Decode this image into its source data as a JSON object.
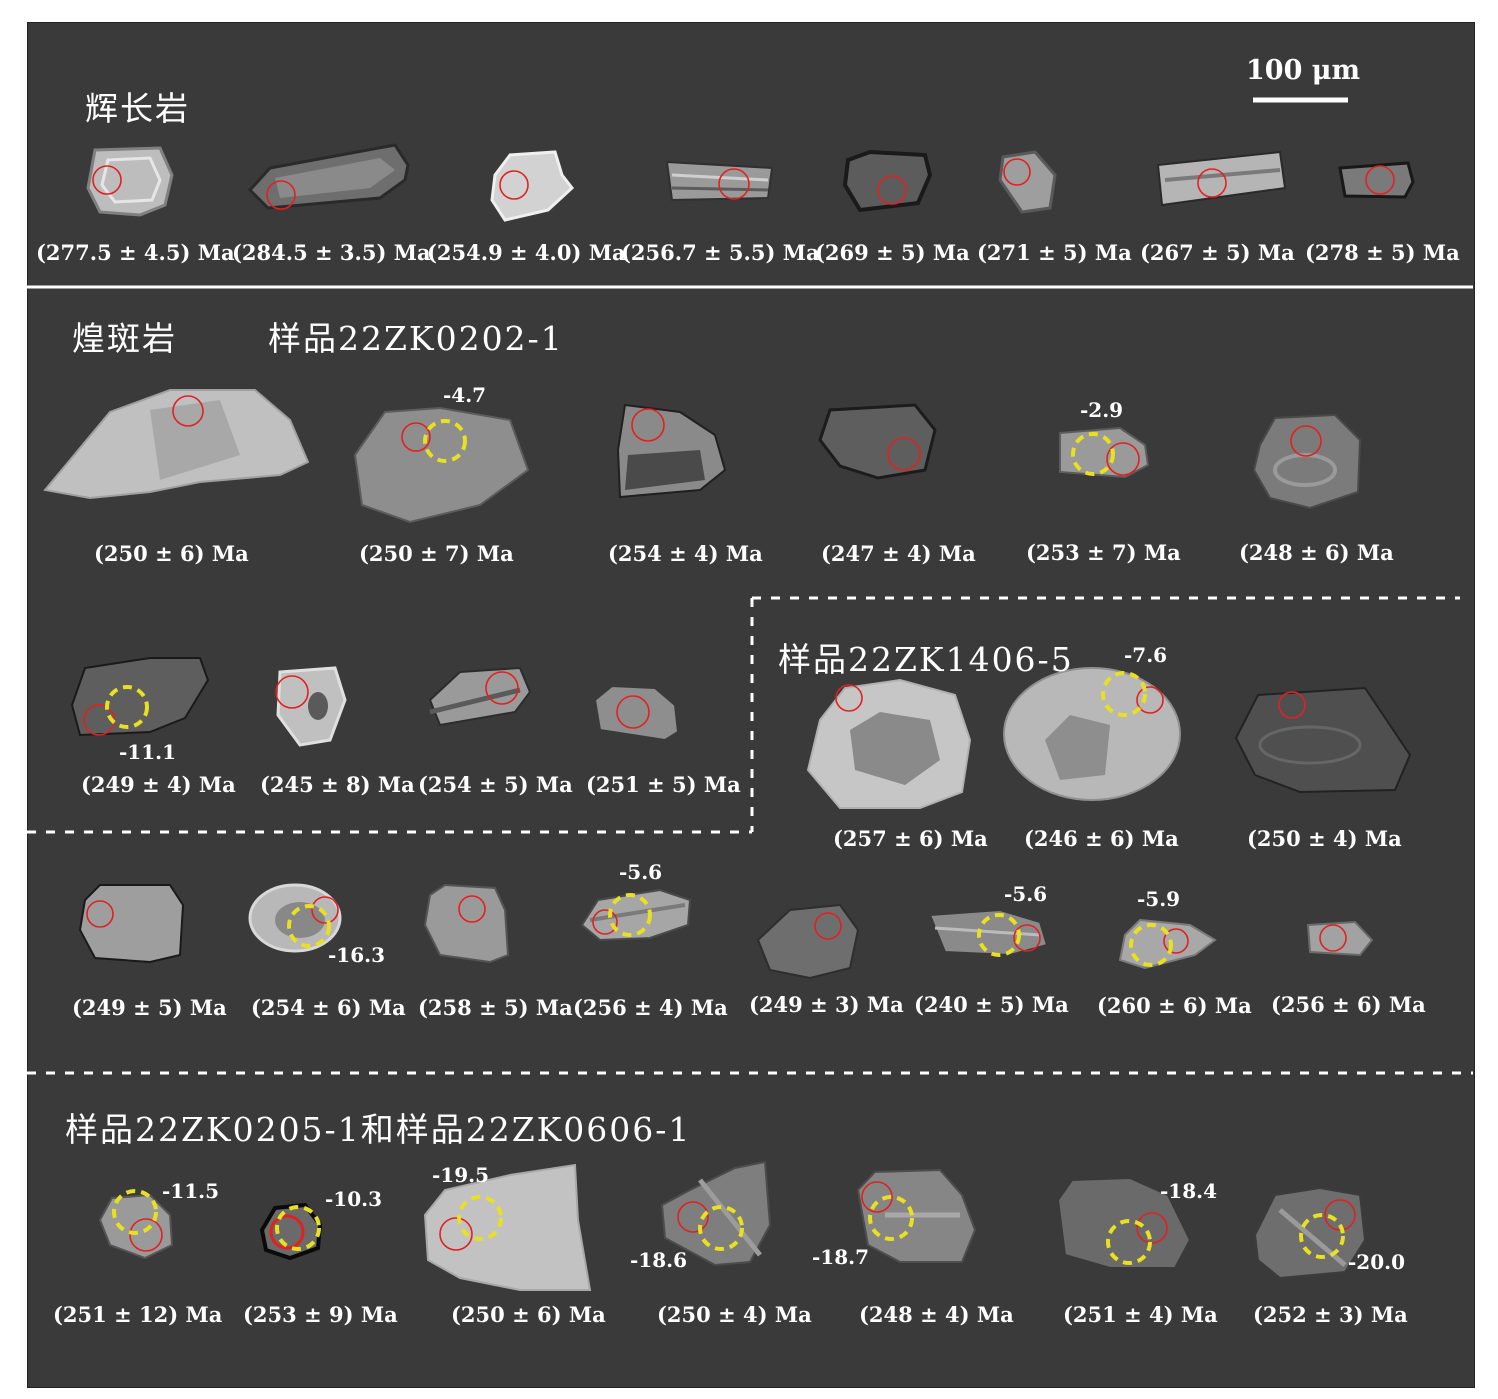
{
  "scale_bar": {
    "label": "100 μm"
  },
  "colors": {
    "background": "#3a3a3a",
    "spot_ring": "#e32020",
    "hf_ring": "#e8e020",
    "text": "#ffffff"
  },
  "sections": {
    "gabbro": {
      "title": "辉长岩",
      "ages": [
        "(277.5 ± 4.5) Ma",
        "(284.5 ± 3.5) Ma",
        "(254.9 ± 4.0) Ma",
        "(256.7 ± 5.5) Ma",
        "(269 ± 5) Ma",
        "(271 ± 5) Ma",
        "(267 ± 5) Ma",
        "(278 ± 5) Ma"
      ]
    },
    "lamprophyre": {
      "title": "煌斑岩",
      "sample1": {
        "label": "样品22ZK0202-1",
        "row1_ages": [
          "(250 ± 6) Ma",
          "(250 ± 7) Ma",
          "(254 ± 4) Ma",
          "(247 ± 4) Ma",
          "(253 ± 7) Ma",
          "(248 ± 6) Ma"
        ],
        "row1_hf": [
          "-4.7",
          "-2.9"
        ],
        "row2_ages": [
          "(249 ± 4) Ma",
          "(245 ± 8) Ma",
          "(254 ± 5) Ma",
          "(251 ± 5) Ma"
        ],
        "row2_hf": [
          "-11.1"
        ]
      },
      "sample2": {
        "label": "样品22ZK1406-5",
        "ages": [
          "(257 ± 6) Ma",
          "(246 ± 6) Ma",
          "(250 ± 4) Ma"
        ],
        "hf": [
          "-7.6"
        ]
      },
      "row3": {
        "ages": [
          "(249 ± 5) Ma",
          "(254 ± 6) Ma",
          "(258 ± 5) Ma",
          "(256 ± 4) Ma",
          "(249 ± 3) Ma",
          "(240 ± 5) Ma",
          "(260 ± 6) Ma",
          "(256 ± 6) Ma"
        ],
        "hf": [
          "-16.3",
          "-5.6",
          "-5.6",
          "-5.9"
        ]
      }
    },
    "bottom": {
      "label": "样品22ZK0205-1和样品22ZK0606-1",
      "ages": [
        "(251 ± 12) Ma",
        "(253 ± 9) Ma",
        "(250 ± 6) Ma",
        "(250 ± 4) Ma",
        "(248 ± 4) Ma",
        "(251 ± 4) Ma",
        "(252 ± 3) Ma"
      ],
      "hf": [
        "-11.5",
        "-10.3",
        "-19.5",
        "-18.6",
        "-18.7",
        "-18.4",
        "-20.0"
      ]
    }
  }
}
